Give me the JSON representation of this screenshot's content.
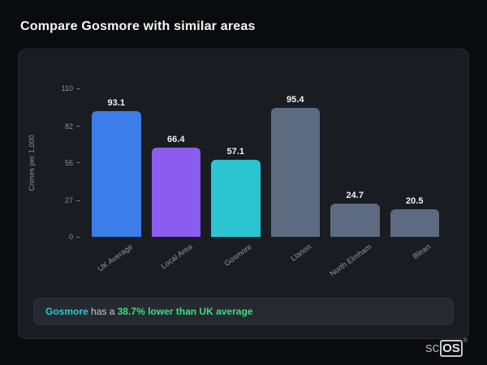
{
  "page": {
    "title": "Compare Gosmore with similar areas"
  },
  "chart_data": {
    "type": "bar",
    "categories": [
      "UK Average",
      "Local Area",
      "Gosmore",
      "Llanon",
      "North Elmham",
      "Blean"
    ],
    "values": [
      93.1,
      66.4,
      57.1,
      95.4,
      24.7,
      20.5
    ],
    "bar_colors": [
      "#3b7de9",
      "#8a5cf0",
      "#2bc5d2",
      "#5d6b80",
      "#5d6b80",
      "#5d6b80"
    ],
    "title": "",
    "xlabel": "",
    "ylabel": "Crimes per 1,000",
    "yticks": [
      0,
      27,
      55,
      82,
      110
    ],
    "ylim": [
      0,
      110
    ],
    "grid": false,
    "legend": "none",
    "value_label_decimals": 1
  },
  "note": {
    "area": "Gosmore",
    "middle": " has a ",
    "highlight": "38.7% lower than UK average"
  },
  "watermark": {
    "prefix": "sc",
    "boxed": "OS",
    "registered": "®"
  },
  "colors": {
    "background": "#0a0b0d",
    "card": "#191c21",
    "note_background": "#262a30",
    "accent_teal": "#2cc7cf",
    "accent_green": "#3ddc84"
  }
}
